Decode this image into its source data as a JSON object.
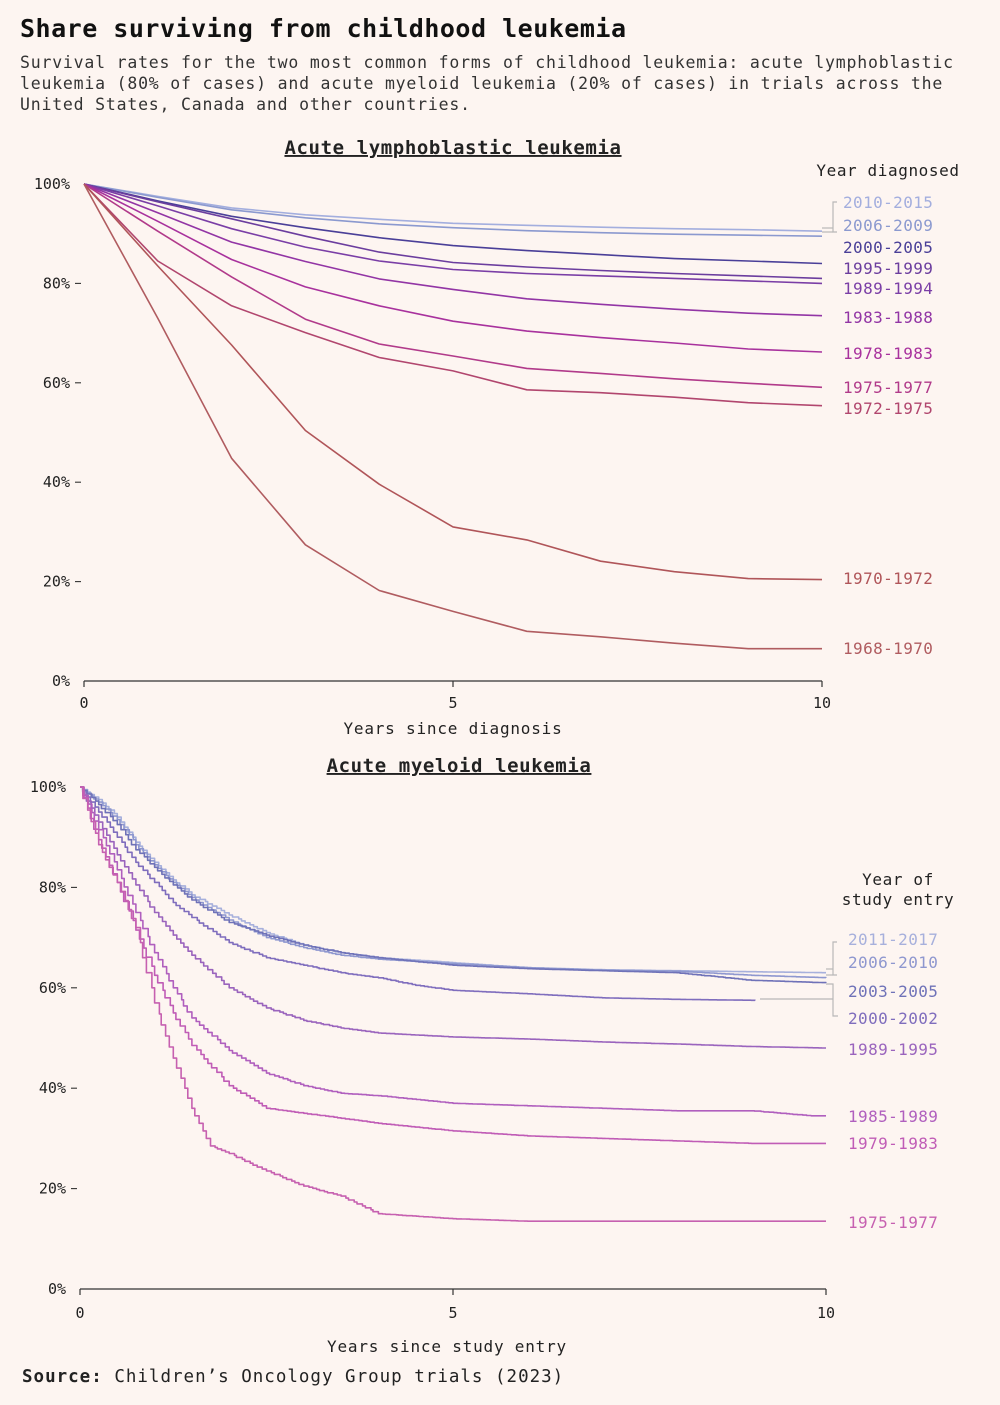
{
  "title": "Share surviving from childhood leukemia",
  "subtitle": "Survival rates for the two most common forms of childhood leukemia: acute lymphoblastic leukemia (80% of cases) and acute myeloid leukemia (20% of cases) in trials across the United States, Canada and other countries.",
  "source": {
    "label": "Source:",
    "text": "Children’s Oncology Group trials (2023)"
  },
  "chart_data": [
    {
      "type": "line",
      "title": "Acute lymphoblastic leukemia",
      "xlabel": "Years since diagnosis",
      "ylabel": "",
      "legend_title": [
        "Year diagnosed"
      ],
      "xlim": [
        0,
        10
      ],
      "ylim": [
        0,
        100
      ],
      "xticks": [
        0,
        5,
        10
      ],
      "yticks": [
        0,
        20,
        40,
        60,
        80,
        100
      ],
      "ytick_labels": [
        "0%",
        "20%",
        "40%",
        "60%",
        "80%",
        "100%"
      ],
      "grid": false,
      "legend_placement": "right, labels at line ends",
      "series": [
        {
          "name": "2010-2015",
          "color": "#a3aede",
          "x": [
            0,
            1,
            2,
            3,
            4,
            5,
            6,
            7,
            8,
            9,
            10
          ],
          "y": [
            100,
            97.5,
            95.2,
            93.8,
            92.9,
            92.1,
            91.7,
            91.3,
            91.0,
            90.8,
            90.5
          ]
        },
        {
          "name": "2006-2009",
          "color": "#8b99cf",
          "x": [
            0,
            1,
            2,
            3,
            4,
            5,
            6,
            7,
            8,
            9,
            10
          ],
          "y": [
            100,
            97.3,
            94.8,
            93.2,
            92.0,
            91.2,
            90.6,
            90.2,
            89.9,
            89.7,
            89.5
          ]
        },
        {
          "name": "2000-2005",
          "color": "#4a3f98",
          "x": [
            0,
            1,
            2,
            3,
            4,
            5,
            6,
            7,
            8,
            9,
            10
          ],
          "y": [
            100,
            96.6,
            93.5,
            91.2,
            89.2,
            87.6,
            86.6,
            85.8,
            85.0,
            84.5,
            84.0
          ]
        },
        {
          "name": "1995-1999",
          "color": "#6b3d9e",
          "x": [
            0,
            1,
            2,
            3,
            4,
            5,
            6,
            7,
            8,
            9,
            10
          ],
          "y": [
            100,
            96.4,
            93.0,
            89.5,
            86.3,
            84.2,
            83.3,
            82.6,
            82.0,
            81.5,
            81.0
          ]
        },
        {
          "name": "1989-1994",
          "color": "#7a3ea6",
          "x": [
            0,
            1,
            2,
            3,
            4,
            5,
            6,
            7,
            8,
            9,
            10
          ],
          "y": [
            100,
            95.6,
            91.0,
            87.3,
            84.5,
            82.8,
            82.0,
            81.5,
            81.0,
            80.5,
            80.0
          ]
        },
        {
          "name": "1983-1988",
          "color": "#9235a5",
          "x": [
            0,
            1,
            2,
            3,
            4,
            5,
            6,
            7,
            8,
            9,
            10
          ],
          "y": [
            100,
            94.2,
            88.3,
            84.4,
            80.9,
            78.8,
            76.9,
            75.8,
            74.8,
            74.0,
            73.5
          ]
        },
        {
          "name": "1978-1983",
          "color": "#a8319d",
          "x": [
            0,
            1,
            2,
            3,
            4,
            5,
            6,
            7,
            8,
            9,
            10
          ],
          "y": [
            100,
            92.5,
            84.8,
            79.3,
            75.5,
            72.4,
            70.4,
            69.1,
            68.0,
            66.8,
            66.2
          ]
        },
        {
          "name": "1975-1977",
          "color": "#b13a8a",
          "x": [
            0,
            1,
            2,
            3,
            4,
            5,
            6,
            7,
            8,
            9,
            10
          ],
          "y": [
            100,
            90.5,
            81.3,
            72.8,
            67.8,
            65.4,
            62.9,
            61.9,
            60.8,
            59.9,
            59.1
          ]
        },
        {
          "name": "1972-1975",
          "color": "#b1466e",
          "x": [
            0,
            1,
            2,
            3,
            4,
            5,
            6,
            7,
            8,
            9,
            10
          ],
          "y": [
            100,
            84.5,
            75.5,
            70.1,
            65.1,
            62.4,
            58.6,
            58.0,
            57.1,
            56.0,
            55.4
          ]
        },
        {
          "name": "1970-1972",
          "color": "#b05559",
          "x": [
            0,
            1,
            2,
            3,
            4,
            5,
            6,
            7,
            8,
            9,
            10
          ],
          "y": [
            100,
            83.5,
            67.6,
            50.4,
            39.6,
            31.0,
            28.4,
            24.1,
            22.0,
            20.6,
            20.4
          ]
        },
        {
          "name": "1968-1970",
          "color": "#b05c60",
          "x": [
            0,
            1,
            2,
            3,
            4,
            5,
            6,
            7,
            8,
            9,
            10
          ],
          "y": [
            100,
            73.0,
            44.8,
            27.4,
            18.2,
            14.0,
            10.0,
            8.9,
            7.6,
            6.5,
            6.5
          ]
        }
      ]
    },
    {
      "type": "line",
      "title": "Acute myeloid leukemia",
      "xlabel": "Years since study entry",
      "ylabel": "",
      "legend_title": [
        "Year of",
        "study entry"
      ],
      "xlim": [
        0,
        10
      ],
      "ylim": [
        0,
        100
      ],
      "xticks": [
        0,
        5,
        10
      ],
      "yticks": [
        0,
        20,
        40,
        60,
        80,
        100
      ],
      "ytick_labels": [
        "0%",
        "20%",
        "40%",
        "60%",
        "80%",
        "100%"
      ],
      "grid": false,
      "legend_placement": "right, labels at line ends",
      "series": [
        {
          "name": "2011-2017",
          "color": "#a7b0dc",
          "x": [
            0,
            0.25,
            0.5,
            0.75,
            1,
            1.25,
            1.5,
            2,
            2.5,
            3,
            3.5,
            4,
            5,
            6,
            7,
            8,
            9,
            10
          ],
          "y": [
            100,
            97.5,
            94,
            89,
            85,
            81.5,
            78.5,
            74.5,
            71,
            68.5,
            67,
            66,
            65,
            64,
            63.6,
            63.4,
            63.2,
            63
          ]
        },
        {
          "name": "2006-2010",
          "color": "#8e97cf",
          "x": [
            0,
            0.25,
            0.5,
            0.75,
            1,
            1.25,
            1.5,
            2,
            2.5,
            3,
            3.5,
            4,
            5,
            6,
            7,
            8,
            9,
            10
          ],
          "y": [
            100,
            97,
            93.5,
            88.5,
            84.5,
            81,
            78,
            73.5,
            70,
            68,
            66.5,
            65.7,
            64.8,
            64,
            63.5,
            63.3,
            62.5,
            62
          ]
        },
        {
          "name": "2003-2005",
          "color": "#6f72b8",
          "x": [
            0,
            0.25,
            0.5,
            0.75,
            1,
            1.25,
            1.5,
            2,
            2.5,
            3,
            3.5,
            4,
            5,
            6,
            7,
            8,
            9,
            10
          ],
          "y": [
            100,
            96.5,
            92.5,
            87.5,
            84,
            80.5,
            77.5,
            73,
            70.5,
            68.5,
            67,
            66,
            64.5,
            63.8,
            63.4,
            63,
            61.5,
            61
          ]
        },
        {
          "name": "2000-2002",
          "color": "#7f6dbd",
          "x": [
            0,
            0.25,
            0.5,
            0.75,
            1,
            1.25,
            1.5,
            2,
            2.5,
            3,
            3.5,
            4,
            4.5,
            5,
            6,
            7,
            8,
            9.05
          ],
          "y": [
            100,
            95,
            90,
            85,
            81,
            77,
            74,
            69,
            66,
            64.5,
            63,
            62,
            60.5,
            59.5,
            58.8,
            58,
            57.7,
            57.5
          ]
        },
        {
          "name": "1989-1995",
          "color": "#9a64bd",
          "x": [
            0,
            0.25,
            0.5,
            0.75,
            1,
            1.25,
            1.5,
            2,
            2.5,
            3,
            3.5,
            4,
            5,
            6,
            7,
            8,
            9,
            10
          ],
          "y": [
            100,
            93,
            86.5,
            80.5,
            75,
            70.5,
            66.5,
            60,
            56,
            53.5,
            52,
            51,
            50.2,
            49.8,
            49.2,
            48.8,
            48.3,
            48
          ]
        },
        {
          "name": "1985-1989",
          "color": "#b05fbe",
          "x": [
            0,
            0.25,
            0.5,
            0.75,
            1,
            1.25,
            1.5,
            2,
            2.5,
            3,
            3.5,
            4,
            5,
            6,
            7,
            8,
            9,
            9.8,
            10
          ],
          "y": [
            100,
            91.5,
            83.5,
            75,
            67,
            60,
            54,
            47.5,
            43,
            40.5,
            39,
            38.5,
            37,
            36.5,
            36,
            35.5,
            35.5,
            34.5,
            34.5
          ]
        },
        {
          "name": "1979-1983",
          "color": "#c05cb6",
          "x": [
            0,
            0.25,
            0.5,
            0.75,
            1,
            1.25,
            1.5,
            2,
            2.5,
            3,
            3.5,
            4,
            5,
            6,
            7,
            8,
            9,
            10
          ],
          "y": [
            100,
            89.5,
            81,
            71.5,
            62.5,
            55,
            48.5,
            40.5,
            36,
            35,
            34,
            33,
            31.5,
            30.5,
            30,
            29.5,
            29,
            29
          ]
        },
        {
          "name": "1975-1977",
          "color": "#c660b0",
          "x": [
            0,
            0.25,
            0.5,
            0.75,
            1,
            1.25,
            1.5,
            1.75,
            2,
            2.5,
            3,
            3.5,
            4,
            5,
            6,
            7,
            8,
            9,
            10
          ],
          "y": [
            100,
            88.5,
            81,
            72,
            57,
            46,
            36,
            28.5,
            27,
            23.5,
            20.5,
            18.5,
            15,
            14,
            13.5,
            13.5,
            13.5,
            13.5,
            13.5
          ]
        }
      ]
    }
  ]
}
